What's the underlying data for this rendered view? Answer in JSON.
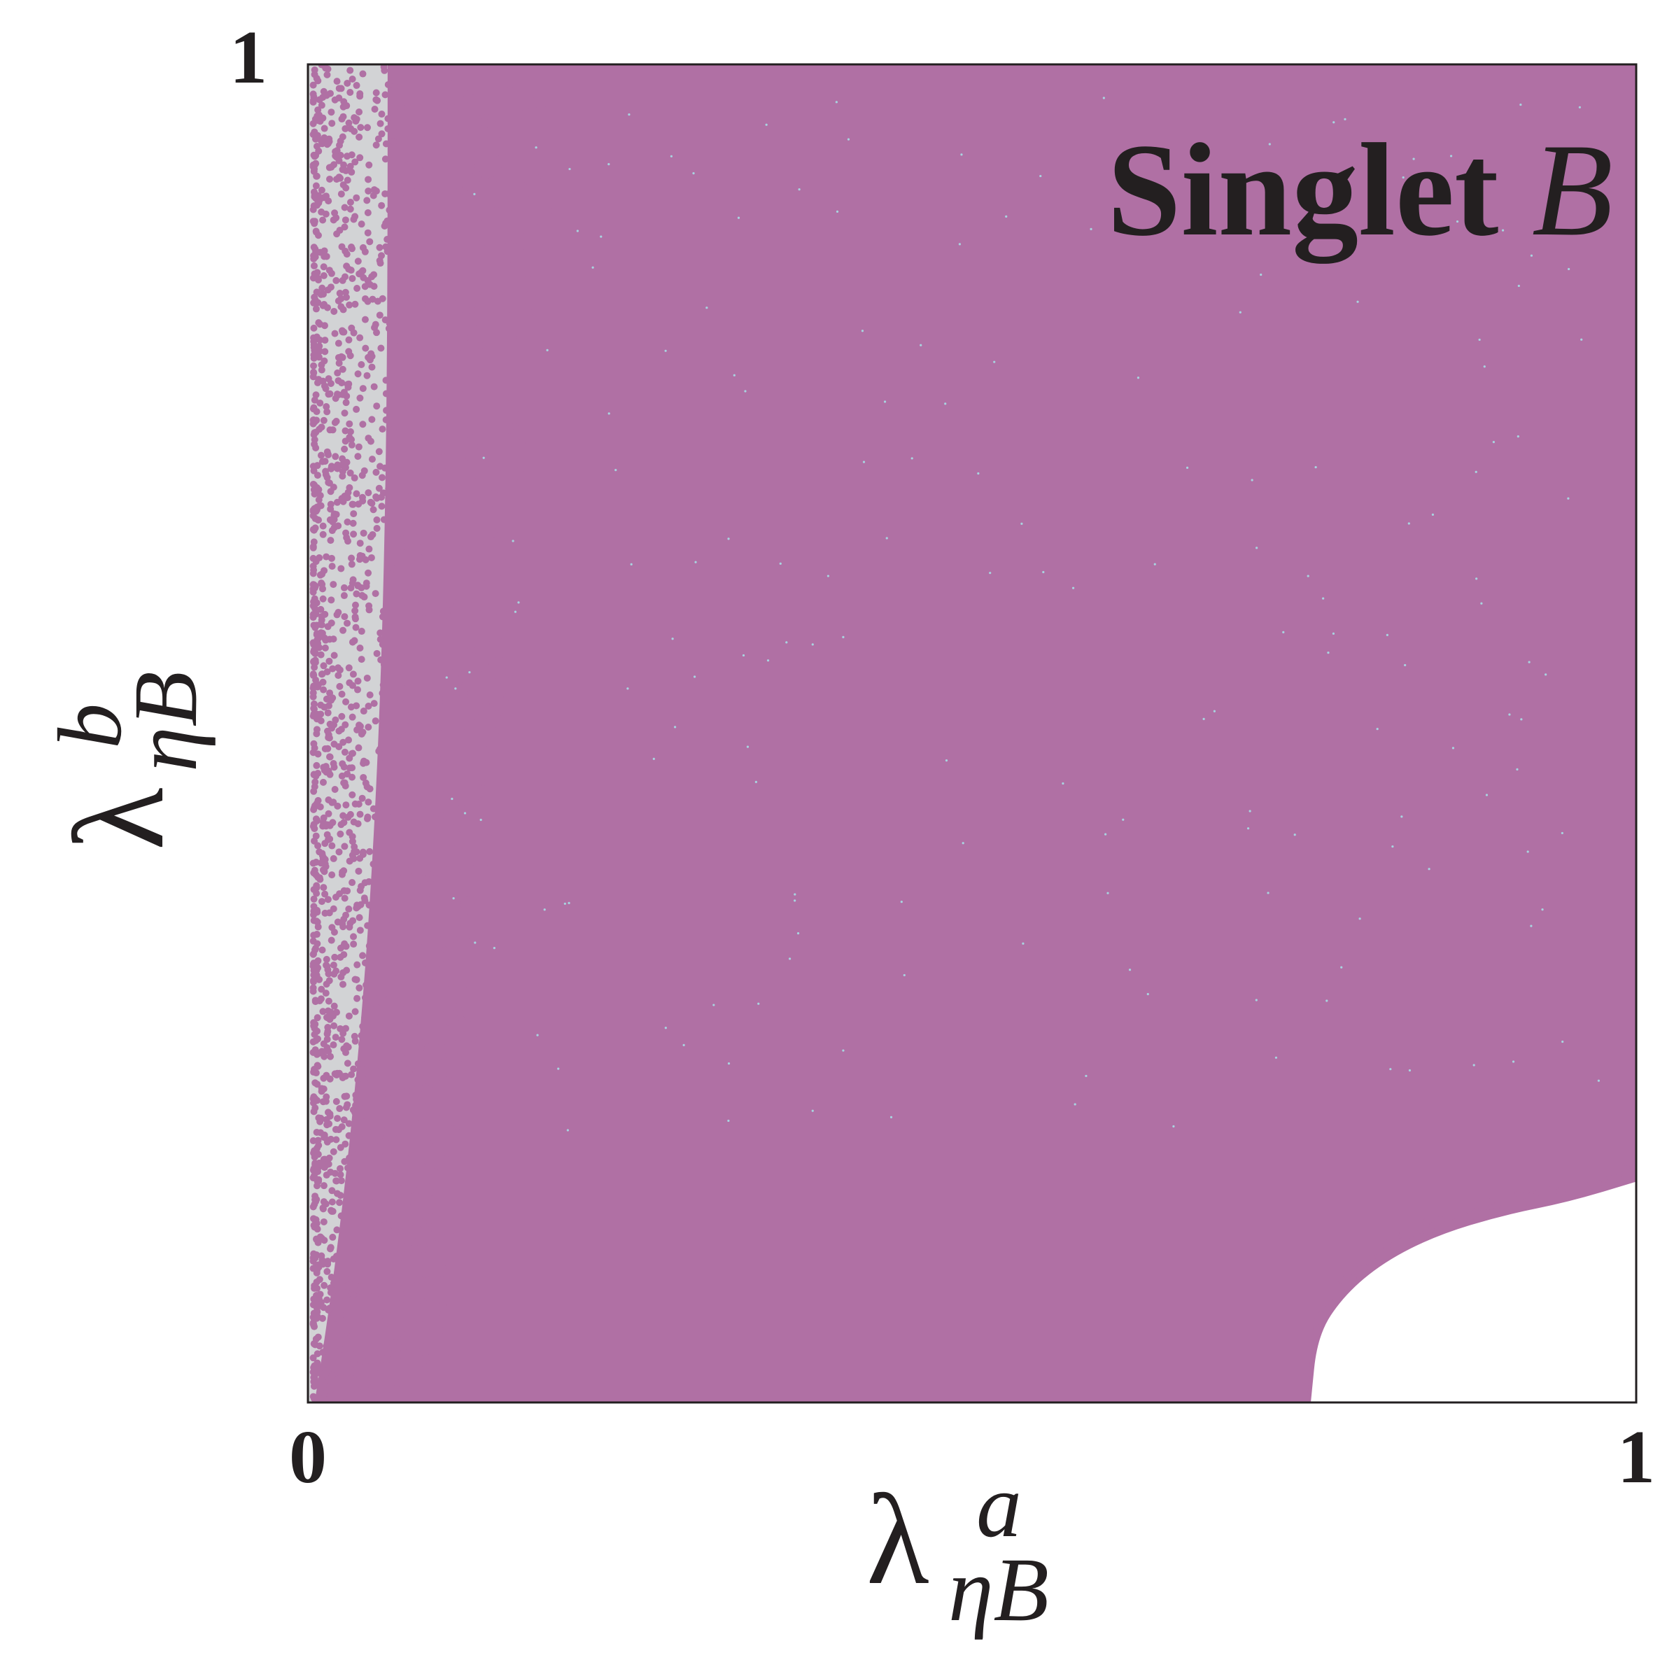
{
  "chart_data": {
    "type": "scatter",
    "panel_label": {
      "text": "Singlet ",
      "italic_part": "B"
    },
    "xlabel": {
      "symbol": "λ",
      "superscript": "a",
      "subscript": "ηB"
    },
    "ylabel": {
      "symbol": "λ",
      "superscript": "b",
      "subscript": "ηB"
    },
    "xlim": [
      0,
      1
    ],
    "ylim": [
      0,
      1
    ],
    "x_ticks": [
      "0",
      "1"
    ],
    "y_ticks": [
      "1"
    ],
    "grid": false,
    "legend": "none",
    "series": [
      {
        "color": "#b070a4",
        "description_region": "dense fill over unit square except excluded corner",
        "excluded_corner_boundary": [
          {
            "x": 0.755,
            "y": 0.0
          },
          {
            "x": 0.76,
            "y": 0.05
          },
          {
            "x": 0.78,
            "y": 0.08
          },
          {
            "x": 0.81,
            "y": 0.105
          },
          {
            "x": 0.85,
            "y": 0.125
          },
          {
            "x": 0.9,
            "y": 0.14
          },
          {
            "x": 0.95,
            "y": 0.15
          },
          {
            "x": 1.0,
            "y": 0.165
          }
        ]
      }
    ],
    "colors": {
      "points": "#b070a4",
      "underlay": "#d2d3d5",
      "gap_highlight": "#a8d4e0",
      "text": "#231f20"
    }
  }
}
